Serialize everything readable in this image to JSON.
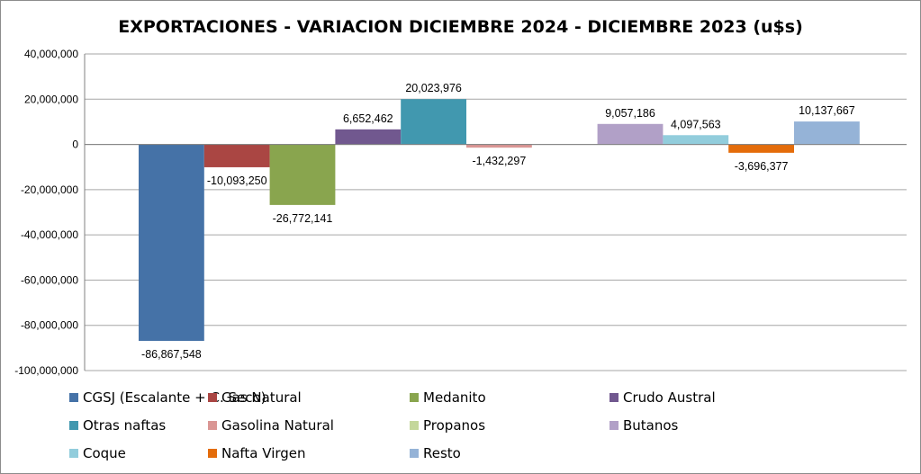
{
  "chart_data": {
    "type": "bar",
    "title": "EXPORTACIONES - VARIACION DICIEMBRE 2024 - DICIEMBRE 2023 (u$s)",
    "xlabel": "",
    "ylabel": "",
    "ylim": [
      -100000000,
      40000000
    ],
    "yticks": [
      40000000,
      20000000,
      0,
      -20000000,
      -40000000,
      -60000000,
      -80000000,
      -100000000
    ],
    "ytick_labels": [
      "40,000,000",
      "20,000,000",
      "0",
      "-20,000,000",
      "-40,000,000",
      "-60,000,000",
      "-80,000,000",
      "-100,000,000"
    ],
    "grid": true,
    "legend_position": "bottom",
    "series": [
      {
        "name": "CGSJ (Escalante + C. Seco)",
        "value": -86867548,
        "label": "-86,867,548",
        "color": "#4572a7"
      },
      {
        "name": "Gas Natural",
        "value": -10093250,
        "label": "-10,093,250",
        "color": "#aa4643"
      },
      {
        "name": "Medanito",
        "value": -26772141,
        "label": "-26,772,141",
        "color": "#89a54e"
      },
      {
        "name": "Crudo Austral",
        "value": 6652462,
        "label": "6,652,462",
        "color": "#71588f"
      },
      {
        "name": "Otras naftas",
        "value": 20023976,
        "label": "20,023,976",
        "color": "#4198af"
      },
      {
        "name": "Gasolina Natural",
        "value": -1432297,
        "label": "-1,432,297",
        "color": "#da9694"
      },
      {
        "name": "Propanos",
        "value": null,
        "label": "",
        "color": "#c4d79b"
      },
      {
        "name": "Butanos",
        "value": 9057186,
        "label": "9,057,186",
        "color": "#b1a0c7"
      },
      {
        "name": "Coque",
        "value": 4097563,
        "label": "4,097,563",
        "color": "#92cddc"
      },
      {
        "name": "Nafta Virgen",
        "value": -3696377,
        "label": "-3,696,377",
        "color": "#e46c0a"
      },
      {
        "name": "Resto",
        "value": 10137667,
        "label": "10,137,667",
        "color": "#95b3d7"
      }
    ]
  }
}
